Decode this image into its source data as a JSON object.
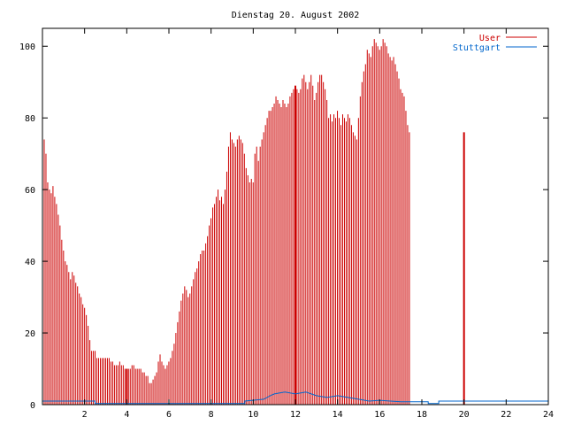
{
  "chart_data": {
    "type": "bar",
    "title": "Dienstag 20. August 2002",
    "xlabel": "",
    "ylabel": "",
    "xlim": [
      0,
      24
    ],
    "ylim": [
      0,
      105
    ],
    "x_ticks": [
      "2",
      "4",
      "6",
      "8",
      "10",
      "12",
      "14",
      "16",
      "18",
      "20",
      "22",
      "24"
    ],
    "y_ticks": [
      "0",
      "20",
      "40",
      "60",
      "80",
      "100"
    ],
    "grid": false,
    "legend_position": "top-right",
    "series": [
      {
        "name": "User",
        "color": "#cc0000",
        "style": "impulses",
        "x_start": 0.0,
        "x_step": 0.0833,
        "values": [
          76,
          74,
          70,
          62,
          60,
          59,
          61,
          58,
          56,
          53,
          50,
          46,
          43,
          40,
          39,
          37,
          35,
          37,
          36,
          34,
          33,
          31,
          30,
          28,
          27,
          25,
          22,
          18,
          15,
          15,
          15,
          13,
          13,
          13,
          13,
          13,
          13,
          13,
          13,
          12,
          12,
          11,
          11,
          11,
          12,
          11,
          11,
          10,
          10,
          10,
          10,
          11,
          11,
          10,
          10,
          10,
          10,
          9,
          9,
          8,
          8,
          6,
          6,
          7,
          8,
          9,
          12,
          14,
          12,
          11,
          10,
          11,
          12,
          13,
          15,
          17,
          20,
          23,
          26,
          29,
          31,
          33,
          32,
          30,
          31,
          33,
          35,
          37,
          38,
          40,
          42,
          43,
          43,
          45,
          47,
          50,
          52,
          55,
          56,
          58,
          60,
          57,
          58,
          56,
          60,
          65,
          72,
          76,
          74,
          73,
          72,
          74,
          75,
          74,
          73,
          70,
          66,
          64,
          62,
          63,
          62,
          70,
          72,
          68,
          72,
          74,
          76,
          78,
          80,
          82,
          82,
          83,
          84,
          86,
          85,
          84,
          83,
          85,
          84,
          83,
          84,
          86,
          87,
          88,
          89,
          88,
          87,
          88,
          91,
          92,
          90,
          88,
          90,
          92,
          89,
          85,
          87,
          90,
          92,
          92,
          90,
          88,
          85,
          80,
          81,
          79,
          81,
          80,
          82,
          80,
          78,
          81,
          80,
          79,
          81,
          80,
          78,
          76,
          75,
          74,
          80,
          86,
          90,
          93,
          95,
          99,
          98,
          97,
          100,
          102,
          101,
          100,
          99,
          100,
          102,
          101,
          100,
          98,
          97,
          96,
          97,
          95,
          93,
          91,
          88,
          87,
          86,
          82,
          78,
          76
        ]
      },
      {
        "name": "Stuttgart",
        "color": "#0066cc",
        "style": "line",
        "points": [
          [
            0,
            1
          ],
          [
            2.5,
            1
          ],
          [
            2.5,
            0.3
          ],
          [
            9.6,
            0.3
          ],
          [
            9.6,
            1
          ],
          [
            10.5,
            1.5
          ],
          [
            10.8,
            2.5
          ],
          [
            11.0,
            3.0
          ],
          [
            11.5,
            3.5
          ],
          [
            12.0,
            3.0
          ],
          [
            12.5,
            3.5
          ],
          [
            13.0,
            2.5
          ],
          [
            13.5,
            2.0
          ],
          [
            14.0,
            2.5
          ],
          [
            14.5,
            2.0
          ],
          [
            15.0,
            1.5
          ],
          [
            15.5,
            1.0
          ],
          [
            16.0,
            1.2
          ],
          [
            16.5,
            1.0
          ],
          [
            17.0,
            0.8
          ],
          [
            18.3,
            0.8
          ],
          [
            18.3,
            0.3
          ],
          [
            18.8,
            0.3
          ],
          [
            18.8,
            1.0
          ],
          [
            24,
            1.0
          ]
        ]
      }
    ]
  }
}
